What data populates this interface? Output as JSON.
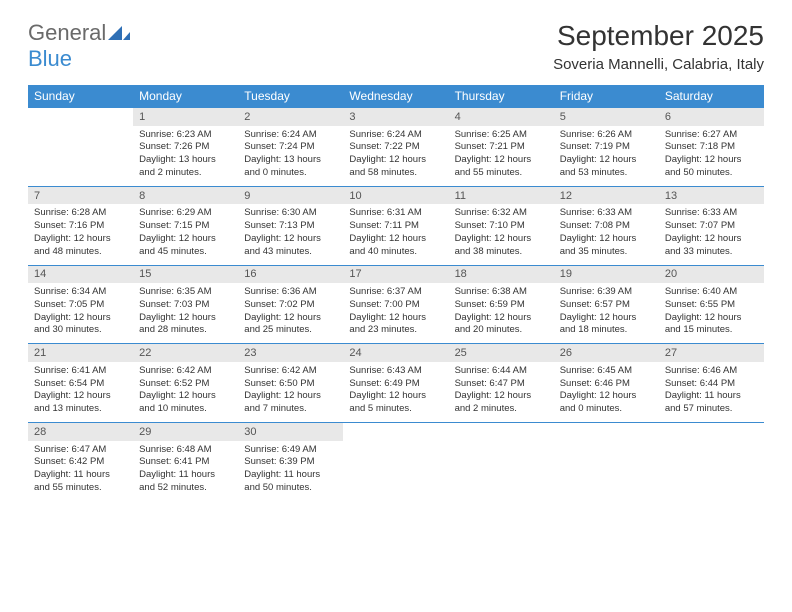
{
  "brand": {
    "part1": "General",
    "part2": "Blue"
  },
  "title": "September 2025",
  "location": "Soveria Mannelli, Calabria, Italy",
  "colors": {
    "header_bg": "#3b8bd0",
    "header_text": "#ffffff",
    "daynum_bg": "#e8e8e8",
    "border": "#3b8bd0",
    "text": "#333333",
    "logo_gray": "#6a6a6a",
    "logo_blue": "#3b8bd0",
    "background": "#ffffff"
  },
  "typography": {
    "title_fontsize": 28,
    "location_fontsize": 15,
    "weekday_fontsize": 12,
    "daynum_fontsize": 11,
    "detail_fontsize": 9.5
  },
  "weekdays": [
    "Sunday",
    "Monday",
    "Tuesday",
    "Wednesday",
    "Thursday",
    "Friday",
    "Saturday"
  ],
  "weeks": [
    {
      "nums": [
        "",
        "1",
        "2",
        "3",
        "4",
        "5",
        "6"
      ],
      "details": [
        "",
        "Sunrise: 6:23 AM\nSunset: 7:26 PM\nDaylight: 13 hours and 2 minutes.",
        "Sunrise: 6:24 AM\nSunset: 7:24 PM\nDaylight: 13 hours and 0 minutes.",
        "Sunrise: 6:24 AM\nSunset: 7:22 PM\nDaylight: 12 hours and 58 minutes.",
        "Sunrise: 6:25 AM\nSunset: 7:21 PM\nDaylight: 12 hours and 55 minutes.",
        "Sunrise: 6:26 AM\nSunset: 7:19 PM\nDaylight: 12 hours and 53 minutes.",
        "Sunrise: 6:27 AM\nSunset: 7:18 PM\nDaylight: 12 hours and 50 minutes."
      ]
    },
    {
      "nums": [
        "7",
        "8",
        "9",
        "10",
        "11",
        "12",
        "13"
      ],
      "details": [
        "Sunrise: 6:28 AM\nSunset: 7:16 PM\nDaylight: 12 hours and 48 minutes.",
        "Sunrise: 6:29 AM\nSunset: 7:15 PM\nDaylight: 12 hours and 45 minutes.",
        "Sunrise: 6:30 AM\nSunset: 7:13 PM\nDaylight: 12 hours and 43 minutes.",
        "Sunrise: 6:31 AM\nSunset: 7:11 PM\nDaylight: 12 hours and 40 minutes.",
        "Sunrise: 6:32 AM\nSunset: 7:10 PM\nDaylight: 12 hours and 38 minutes.",
        "Sunrise: 6:33 AM\nSunset: 7:08 PM\nDaylight: 12 hours and 35 minutes.",
        "Sunrise: 6:33 AM\nSunset: 7:07 PM\nDaylight: 12 hours and 33 minutes."
      ]
    },
    {
      "nums": [
        "14",
        "15",
        "16",
        "17",
        "18",
        "19",
        "20"
      ],
      "details": [
        "Sunrise: 6:34 AM\nSunset: 7:05 PM\nDaylight: 12 hours and 30 minutes.",
        "Sunrise: 6:35 AM\nSunset: 7:03 PM\nDaylight: 12 hours and 28 minutes.",
        "Sunrise: 6:36 AM\nSunset: 7:02 PM\nDaylight: 12 hours and 25 minutes.",
        "Sunrise: 6:37 AM\nSunset: 7:00 PM\nDaylight: 12 hours and 23 minutes.",
        "Sunrise: 6:38 AM\nSunset: 6:59 PM\nDaylight: 12 hours and 20 minutes.",
        "Sunrise: 6:39 AM\nSunset: 6:57 PM\nDaylight: 12 hours and 18 minutes.",
        "Sunrise: 6:40 AM\nSunset: 6:55 PM\nDaylight: 12 hours and 15 minutes."
      ]
    },
    {
      "nums": [
        "21",
        "22",
        "23",
        "24",
        "25",
        "26",
        "27"
      ],
      "details": [
        "Sunrise: 6:41 AM\nSunset: 6:54 PM\nDaylight: 12 hours and 13 minutes.",
        "Sunrise: 6:42 AM\nSunset: 6:52 PM\nDaylight: 12 hours and 10 minutes.",
        "Sunrise: 6:42 AM\nSunset: 6:50 PM\nDaylight: 12 hours and 7 minutes.",
        "Sunrise: 6:43 AM\nSunset: 6:49 PM\nDaylight: 12 hours and 5 minutes.",
        "Sunrise: 6:44 AM\nSunset: 6:47 PM\nDaylight: 12 hours and 2 minutes.",
        "Sunrise: 6:45 AM\nSunset: 6:46 PM\nDaylight: 12 hours and 0 minutes.",
        "Sunrise: 6:46 AM\nSunset: 6:44 PM\nDaylight: 11 hours and 57 minutes."
      ]
    },
    {
      "nums": [
        "28",
        "29",
        "30",
        "",
        "",
        "",
        ""
      ],
      "details": [
        "Sunrise: 6:47 AM\nSunset: 6:42 PM\nDaylight: 11 hours and 55 minutes.",
        "Sunrise: 6:48 AM\nSunset: 6:41 PM\nDaylight: 11 hours and 52 minutes.",
        "Sunrise: 6:49 AM\nSunset: 6:39 PM\nDaylight: 11 hours and 50 minutes.",
        "",
        "",
        "",
        ""
      ]
    }
  ]
}
